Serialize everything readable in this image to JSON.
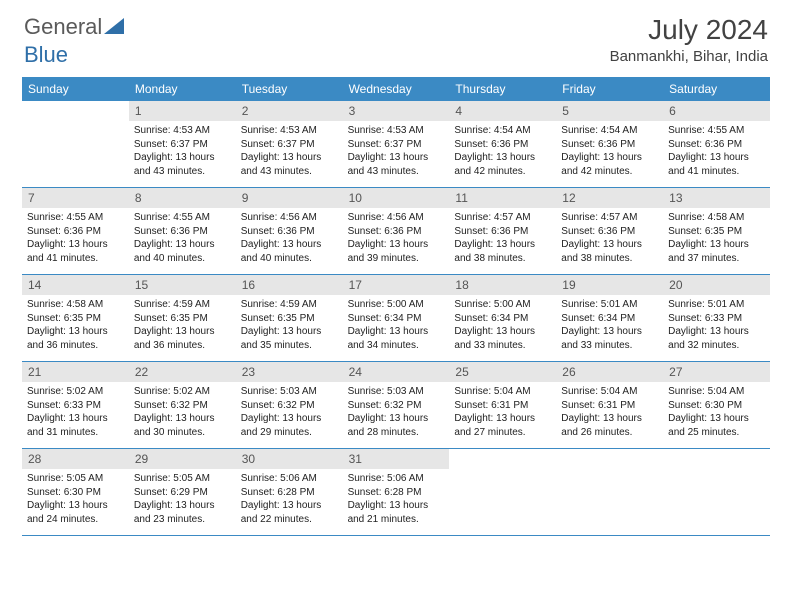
{
  "brand": {
    "word1": "General",
    "word2": "Blue",
    "color1": "#6b6b6b",
    "color2": "#2f6fa8",
    "triangle": "#2f6fa8"
  },
  "title": {
    "month": "July 2024",
    "location": "Banmankhi, Bihar, India"
  },
  "theme": {
    "header_bg": "#3b8ac4",
    "header_text": "#ffffff",
    "daynum_bg": "#e6e6e6",
    "daynum_text": "#555555",
    "cell_text": "#222222",
    "row_border": "#3b8ac4"
  },
  "layout": {
    "columns": 7,
    "rows": 5,
    "cell_min_height": 86
  },
  "fonts": {
    "title_size": 28,
    "location_size": 15,
    "day_header_size": 12,
    "daynum_size": 12,
    "info_size": 10
  },
  "dayNames": [
    "Sunday",
    "Monday",
    "Tuesday",
    "Wednesday",
    "Thursday",
    "Friday",
    "Saturday"
  ],
  "weeks": [
    [
      {
        "day": "",
        "sunrise": "",
        "sunset": "",
        "daylight1": "",
        "daylight2": ""
      },
      {
        "day": "1",
        "sunrise": "Sunrise: 4:53 AM",
        "sunset": "Sunset: 6:37 PM",
        "daylight1": "Daylight: 13 hours",
        "daylight2": "and 43 minutes."
      },
      {
        "day": "2",
        "sunrise": "Sunrise: 4:53 AM",
        "sunset": "Sunset: 6:37 PM",
        "daylight1": "Daylight: 13 hours",
        "daylight2": "and 43 minutes."
      },
      {
        "day": "3",
        "sunrise": "Sunrise: 4:53 AM",
        "sunset": "Sunset: 6:37 PM",
        "daylight1": "Daylight: 13 hours",
        "daylight2": "and 43 minutes."
      },
      {
        "day": "4",
        "sunrise": "Sunrise: 4:54 AM",
        "sunset": "Sunset: 6:36 PM",
        "daylight1": "Daylight: 13 hours",
        "daylight2": "and 42 minutes."
      },
      {
        "day": "5",
        "sunrise": "Sunrise: 4:54 AM",
        "sunset": "Sunset: 6:36 PM",
        "daylight1": "Daylight: 13 hours",
        "daylight2": "and 42 minutes."
      },
      {
        "day": "6",
        "sunrise": "Sunrise: 4:55 AM",
        "sunset": "Sunset: 6:36 PM",
        "daylight1": "Daylight: 13 hours",
        "daylight2": "and 41 minutes."
      }
    ],
    [
      {
        "day": "7",
        "sunrise": "Sunrise: 4:55 AM",
        "sunset": "Sunset: 6:36 PM",
        "daylight1": "Daylight: 13 hours",
        "daylight2": "and 41 minutes."
      },
      {
        "day": "8",
        "sunrise": "Sunrise: 4:55 AM",
        "sunset": "Sunset: 6:36 PM",
        "daylight1": "Daylight: 13 hours",
        "daylight2": "and 40 minutes."
      },
      {
        "day": "9",
        "sunrise": "Sunrise: 4:56 AM",
        "sunset": "Sunset: 6:36 PM",
        "daylight1": "Daylight: 13 hours",
        "daylight2": "and 40 minutes."
      },
      {
        "day": "10",
        "sunrise": "Sunrise: 4:56 AM",
        "sunset": "Sunset: 6:36 PM",
        "daylight1": "Daylight: 13 hours",
        "daylight2": "and 39 minutes."
      },
      {
        "day": "11",
        "sunrise": "Sunrise: 4:57 AM",
        "sunset": "Sunset: 6:36 PM",
        "daylight1": "Daylight: 13 hours",
        "daylight2": "and 38 minutes."
      },
      {
        "day": "12",
        "sunrise": "Sunrise: 4:57 AM",
        "sunset": "Sunset: 6:36 PM",
        "daylight1": "Daylight: 13 hours",
        "daylight2": "and 38 minutes."
      },
      {
        "day": "13",
        "sunrise": "Sunrise: 4:58 AM",
        "sunset": "Sunset: 6:35 PM",
        "daylight1": "Daylight: 13 hours",
        "daylight2": "and 37 minutes."
      }
    ],
    [
      {
        "day": "14",
        "sunrise": "Sunrise: 4:58 AM",
        "sunset": "Sunset: 6:35 PM",
        "daylight1": "Daylight: 13 hours",
        "daylight2": "and 36 minutes."
      },
      {
        "day": "15",
        "sunrise": "Sunrise: 4:59 AM",
        "sunset": "Sunset: 6:35 PM",
        "daylight1": "Daylight: 13 hours",
        "daylight2": "and 36 minutes."
      },
      {
        "day": "16",
        "sunrise": "Sunrise: 4:59 AM",
        "sunset": "Sunset: 6:35 PM",
        "daylight1": "Daylight: 13 hours",
        "daylight2": "and 35 minutes."
      },
      {
        "day": "17",
        "sunrise": "Sunrise: 5:00 AM",
        "sunset": "Sunset: 6:34 PM",
        "daylight1": "Daylight: 13 hours",
        "daylight2": "and 34 minutes."
      },
      {
        "day": "18",
        "sunrise": "Sunrise: 5:00 AM",
        "sunset": "Sunset: 6:34 PM",
        "daylight1": "Daylight: 13 hours",
        "daylight2": "and 33 minutes."
      },
      {
        "day": "19",
        "sunrise": "Sunrise: 5:01 AM",
        "sunset": "Sunset: 6:34 PM",
        "daylight1": "Daylight: 13 hours",
        "daylight2": "and 33 minutes."
      },
      {
        "day": "20",
        "sunrise": "Sunrise: 5:01 AM",
        "sunset": "Sunset: 6:33 PM",
        "daylight1": "Daylight: 13 hours",
        "daylight2": "and 32 minutes."
      }
    ],
    [
      {
        "day": "21",
        "sunrise": "Sunrise: 5:02 AM",
        "sunset": "Sunset: 6:33 PM",
        "daylight1": "Daylight: 13 hours",
        "daylight2": "and 31 minutes."
      },
      {
        "day": "22",
        "sunrise": "Sunrise: 5:02 AM",
        "sunset": "Sunset: 6:32 PM",
        "daylight1": "Daylight: 13 hours",
        "daylight2": "and 30 minutes."
      },
      {
        "day": "23",
        "sunrise": "Sunrise: 5:03 AM",
        "sunset": "Sunset: 6:32 PM",
        "daylight1": "Daylight: 13 hours",
        "daylight2": "and 29 minutes."
      },
      {
        "day": "24",
        "sunrise": "Sunrise: 5:03 AM",
        "sunset": "Sunset: 6:32 PM",
        "daylight1": "Daylight: 13 hours",
        "daylight2": "and 28 minutes."
      },
      {
        "day": "25",
        "sunrise": "Sunrise: 5:04 AM",
        "sunset": "Sunset: 6:31 PM",
        "daylight1": "Daylight: 13 hours",
        "daylight2": "and 27 minutes."
      },
      {
        "day": "26",
        "sunrise": "Sunrise: 5:04 AM",
        "sunset": "Sunset: 6:31 PM",
        "daylight1": "Daylight: 13 hours",
        "daylight2": "and 26 minutes."
      },
      {
        "day": "27",
        "sunrise": "Sunrise: 5:04 AM",
        "sunset": "Sunset: 6:30 PM",
        "daylight1": "Daylight: 13 hours",
        "daylight2": "and 25 minutes."
      }
    ],
    [
      {
        "day": "28",
        "sunrise": "Sunrise: 5:05 AM",
        "sunset": "Sunset: 6:30 PM",
        "daylight1": "Daylight: 13 hours",
        "daylight2": "and 24 minutes."
      },
      {
        "day": "29",
        "sunrise": "Sunrise: 5:05 AM",
        "sunset": "Sunset: 6:29 PM",
        "daylight1": "Daylight: 13 hours",
        "daylight2": "and 23 minutes."
      },
      {
        "day": "30",
        "sunrise": "Sunrise: 5:06 AM",
        "sunset": "Sunset: 6:28 PM",
        "daylight1": "Daylight: 13 hours",
        "daylight2": "and 22 minutes."
      },
      {
        "day": "31",
        "sunrise": "Sunrise: 5:06 AM",
        "sunset": "Sunset: 6:28 PM",
        "daylight1": "Daylight: 13 hours",
        "daylight2": "and 21 minutes."
      },
      {
        "day": "",
        "sunrise": "",
        "sunset": "",
        "daylight1": "",
        "daylight2": ""
      },
      {
        "day": "",
        "sunrise": "",
        "sunset": "",
        "daylight1": "",
        "daylight2": ""
      },
      {
        "day": "",
        "sunrise": "",
        "sunset": "",
        "daylight1": "",
        "daylight2": ""
      }
    ]
  ]
}
